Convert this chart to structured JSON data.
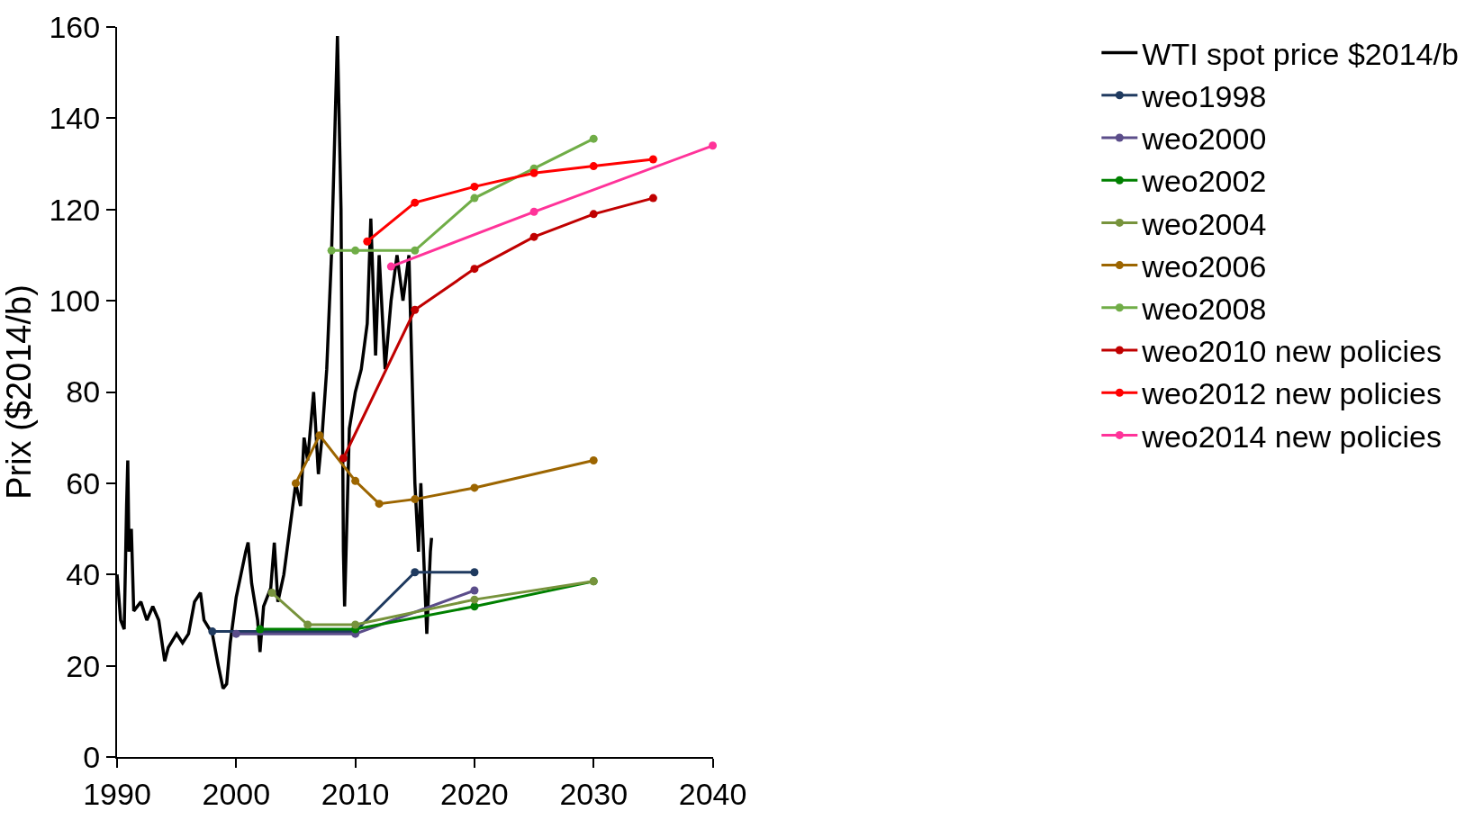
{
  "chart_data": {
    "type": "line",
    "ylabel": "Prix ($2014/b)",
    "xlim": [
      1990,
      2040
    ],
    "xticks": [
      1990,
      2000,
      2010,
      2020,
      2030,
      2040
    ],
    "ylim": [
      0,
      160
    ],
    "yticks": [
      0,
      20,
      40,
      60,
      80,
      100,
      120,
      140,
      160
    ],
    "grid": false,
    "legend": "right",
    "marker": "circle",
    "line_style": "solid",
    "series": [
      {
        "name": "WTI spot price $2014/b",
        "color": "#000000",
        "marker": "none",
        "x": [
          1990,
          1990.3,
          1990.6,
          1990.8,
          1990.9,
          1991,
          1991.2,
          1991.4,
          1992,
          1992.5,
          1993,
          1993.5,
          1994,
          1994.3,
          1995,
          1995.5,
          1996,
          1996.5,
          1997,
          1997.3,
          1998,
          1998.5,
          1998.9,
          1999.2,
          1999.5,
          2000,
          2000.4,
          2000.8,
          2001,
          2001.3,
          2001.8,
          2002,
          2002.3,
          2002.9,
          2003.2,
          2003.5,
          2004,
          2004.5,
          2005,
          2005.4,
          2005.7,
          2006,
          2006.5,
          2006.9,
          2007.2,
          2007.6,
          2008,
          2008.5,
          2008.8,
          2009,
          2009.1,
          2009.5,
          2010,
          2010.5,
          2011,
          2011.3,
          2011.7,
          2012,
          2012.5,
          2013,
          2013.5,
          2014,
          2014.5,
          2015,
          2015.3,
          2015.5,
          2015.8,
          2016,
          2016.3,
          2016.4
        ],
        "values": [
          40,
          30,
          28,
          55,
          65,
          45,
          50,
          32,
          34,
          30,
          33,
          30,
          21,
          24,
          27,
          25,
          27,
          34,
          36,
          30,
          27,
          20,
          15,
          16,
          25,
          35,
          40,
          45,
          47,
          38,
          30,
          23,
          33,
          37,
          47,
          34,
          40,
          50,
          60,
          55,
          70,
          65,
          80,
          62,
          70,
          85,
          110,
          158,
          120,
          45,
          33,
          72,
          80,
          85,
          95,
          118,
          88,
          110,
          85,
          100,
          110,
          100,
          110,
          60,
          45,
          60,
          40,
          27,
          45,
          48
        ]
      },
      {
        "name": "weo1998",
        "color": "#1f3a5f",
        "x": [
          1998,
          2010,
          2015,
          2020
        ],
        "values": [
          27.5,
          27.5,
          40.5,
          40.5
        ]
      },
      {
        "name": "weo2000",
        "color": "#5b4d8a",
        "x": [
          2000,
          2010,
          2020
        ],
        "values": [
          27,
          27,
          36.5
        ]
      },
      {
        "name": "weo2002",
        "color": "#008000",
        "x": [
          2002,
          2010,
          2020,
          2030
        ],
        "values": [
          28,
          28,
          33,
          38.5
        ]
      },
      {
        "name": "weo2004",
        "color": "#77933c",
        "x": [
          2003,
          2006,
          2010,
          2020,
          2030
        ],
        "values": [
          36,
          29,
          29,
          34.5,
          38.5
        ]
      },
      {
        "name": "weo2006",
        "color": "#9c6500",
        "x": [
          2005,
          2007,
          2010,
          2012,
          2015,
          2020,
          2030
        ],
        "values": [
          60,
          70.5,
          60.5,
          55.5,
          56.5,
          59,
          65
        ]
      },
      {
        "name": "weo2008",
        "color": "#70ad47",
        "x": [
          2008,
          2010,
          2015,
          2020,
          2025,
          2030
        ],
        "values": [
          111,
          111,
          111,
          122.5,
          129,
          135.5
        ]
      },
      {
        "name": "weo2010 new policies",
        "color": "#c00000",
        "x": [
          2009,
          2015,
          2020,
          2025,
          2030,
          2035
        ],
        "values": [
          65.5,
          98,
          107,
          114,
          119,
          122.5
        ]
      },
      {
        "name": "weo2012 new policies",
        "color": "#ff0000",
        "x": [
          2011,
          2015,
          2020,
          2025,
          2030,
          2035
        ],
        "values": [
          113,
          121.5,
          125,
          128,
          129.5,
          131
        ]
      },
      {
        "name": "weo2014 new policies",
        "color": "#ff3399",
        "x": [
          2013,
          2025,
          2040
        ],
        "values": [
          107.5,
          119.5,
          134
        ]
      }
    ]
  }
}
